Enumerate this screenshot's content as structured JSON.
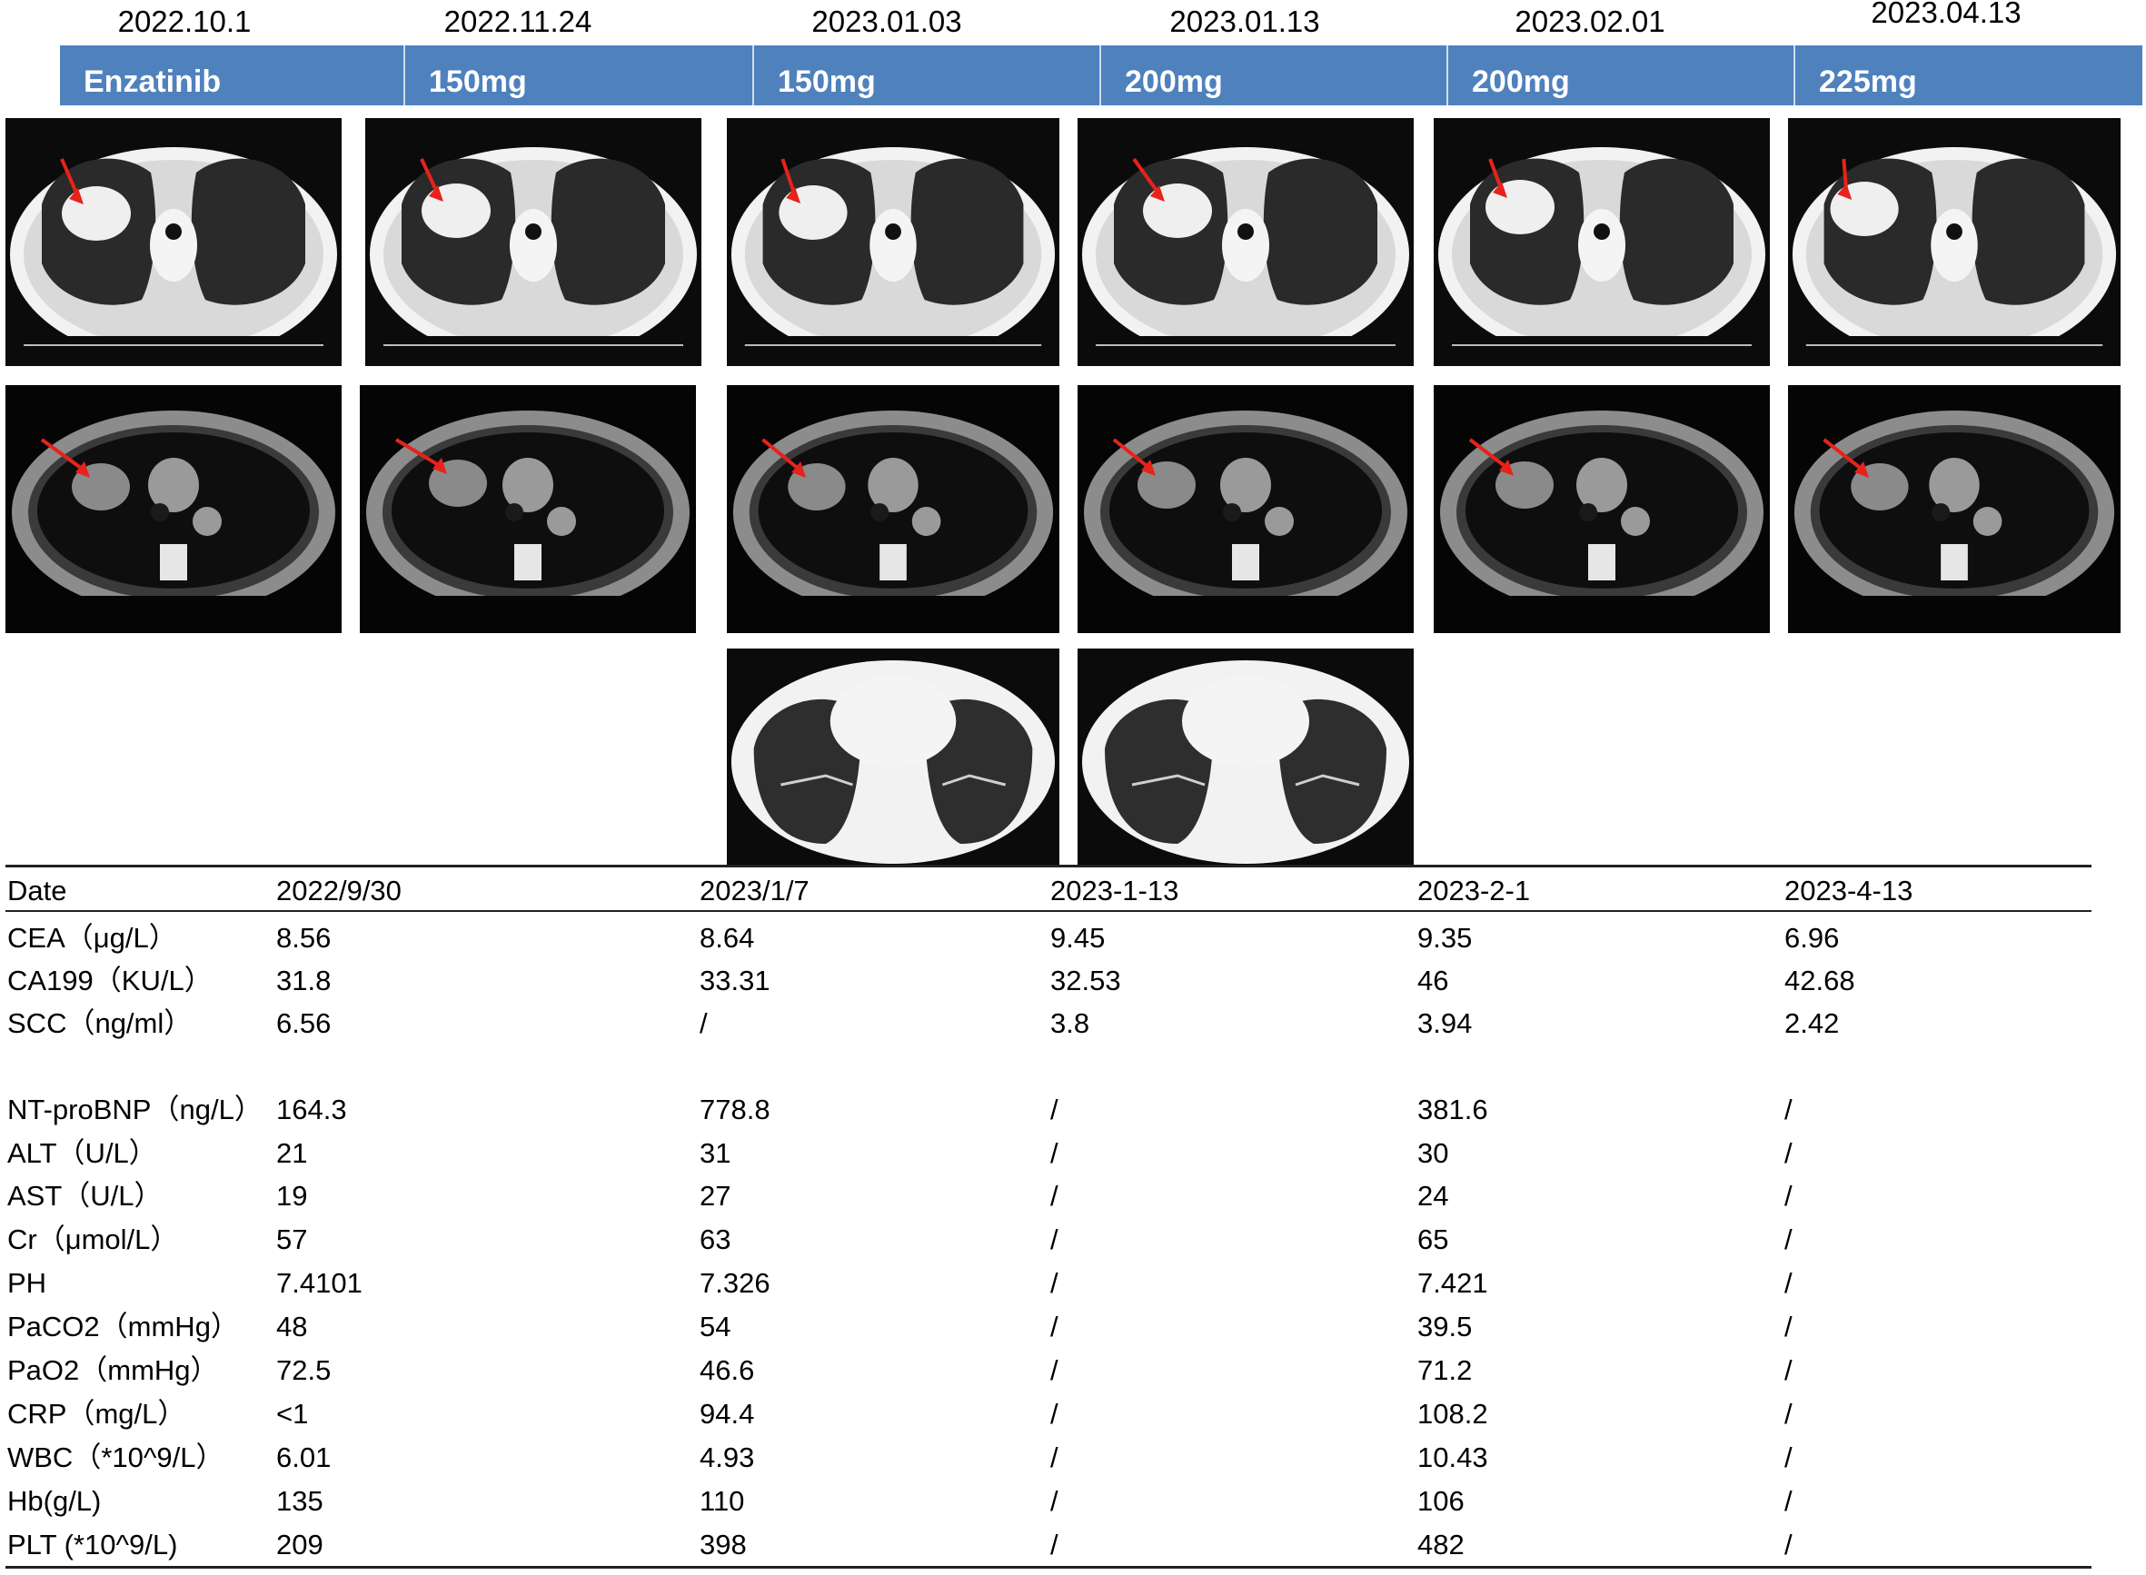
{
  "timeline": {
    "dates": [
      "2022.10.1",
      "2022.11.24",
      "2023.01.03",
      "2023.01.13",
      "2023.02.01",
      "2023.04.13"
    ],
    "doses": [
      "Enzatinib",
      "150mg",
      "150mg",
      "200mg",
      "200mg",
      "225mg"
    ]
  },
  "images": {
    "row1": [
      "lung-window-ct-2022.10.1",
      "lung-window-ct-2022.11.24",
      "lung-window-ct-2023.01.03",
      "lung-window-ct-2023.01.13",
      "lung-window-ct-2023.02.01",
      "lung-window-ct-2023.04.13"
    ],
    "row2": [
      "mediastinal-window-ct-2022.10.1",
      "mediastinal-window-ct-2022.11.24",
      "mediastinal-window-ct-2023.01.03",
      "mediastinal-window-ct-2023.01.13",
      "mediastinal-window-ct-2023.02.01",
      "mediastinal-window-ct-2023.04.13"
    ],
    "row3": [
      "lower-lung-ct-2023.01.03",
      "lower-lung-ct-2023.01.13"
    ],
    "arrow_color": "#e8221b"
  },
  "table": {
    "header": [
      "Date",
      "2022/9/30",
      "2023/1/7",
      "2023-1-13",
      "2023-2-1",
      "2023-4-13"
    ],
    "rows": [
      [
        "CEA（μg/L）",
        "8.56",
        "8.64",
        "9.45",
        "9.35",
        "6.96"
      ],
      [
        "CA199（KU/L）",
        "31.8",
        "33.31",
        "32.53",
        "46",
        "42.68"
      ],
      [
        "SCC（ng/ml）",
        "6.56",
        "/",
        "3.8",
        "3.94",
        "2.42"
      ],
      [
        "NT-proBNP（ng/L）",
        "164.3",
        "778.8",
        "/",
        "381.6",
        "/"
      ],
      [
        "ALT（U/L）",
        "21",
        "31",
        "/",
        "30",
        "/"
      ],
      [
        "AST（U/L）",
        "19",
        "27",
        "/",
        "24",
        "/"
      ],
      [
        "Cr（μmol/L）",
        "57",
        "63",
        "/",
        "65",
        "/"
      ],
      [
        "PH",
        "7.4101",
        "7.326",
        "/",
        "7.421",
        "/"
      ],
      [
        "PaCO2（mmHg）",
        "48",
        "54",
        "/",
        "39.5",
        "/"
      ],
      [
        "PaO2（mmHg）",
        "72.5",
        "46.6",
        "/",
        "71.2",
        "/"
      ],
      [
        "CRP（mg/L）",
        "<1",
        "94.4",
        "/",
        "108.2",
        "/"
      ],
      [
        "WBC（*10^9/L）",
        "6.01",
        "4.93",
        "/",
        "10.43",
        "/"
      ],
      [
        "Hb(g/L)",
        "135",
        "110",
        "/",
        "106",
        "/"
      ],
      [
        "PLT (*10^9/L)",
        "209",
        "398",
        "/",
        "482",
        "/"
      ]
    ]
  }
}
